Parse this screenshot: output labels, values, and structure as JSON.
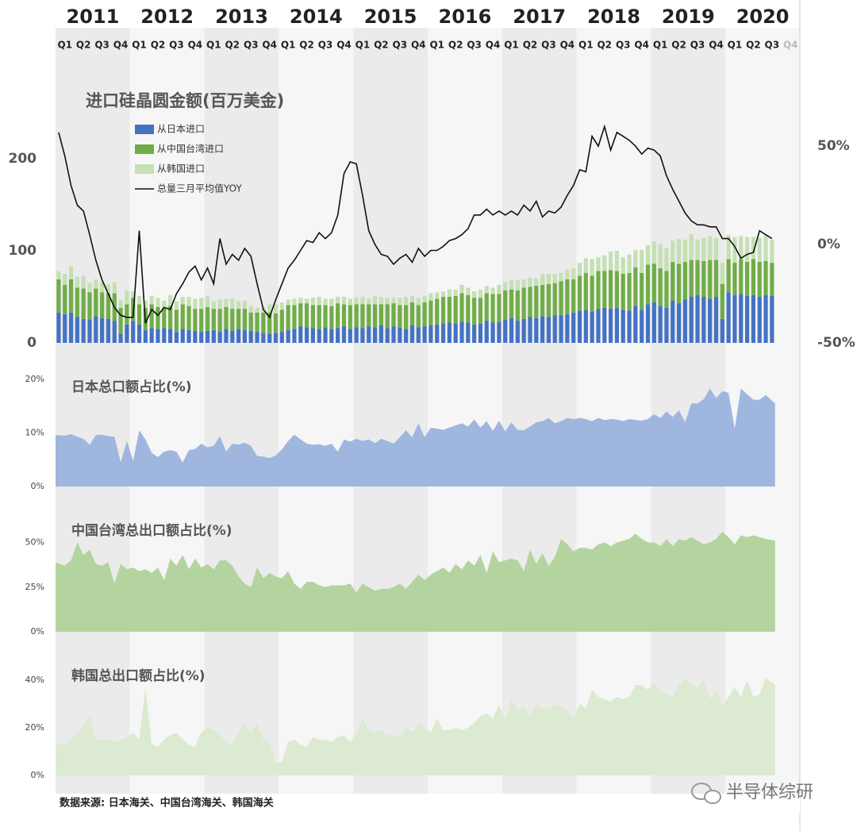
{
  "header": {
    "years": [
      "2011",
      "2012",
      "2013",
      "2014",
      "2015",
      "2016",
      "2017",
      "2018",
      "2019",
      "2020"
    ],
    "quarters": [
      "Q1",
      "Q2",
      "Q3",
      "Q4",
      "Q1",
      "Q2",
      "Q3",
      "Q4",
      "Q1",
      "Q2",
      "Q3",
      "Q4",
      "Q1",
      "Q2",
      "Q3",
      "Q4",
      "Q1",
      "Q2",
      "Q3",
      "Q4",
      "Q1",
      "Q2",
      "Q3",
      "Q4",
      "Q1",
      "Q2",
      "Q3",
      "Q4",
      "Q1",
      "Q2",
      "Q3",
      "Q4",
      "Q1",
      "Q2",
      "Q3",
      "Q4",
      "Q1",
      "Q2",
      "Q3",
      "Q4"
    ]
  },
  "chart_data": [
    {
      "type": "bar",
      "title": "进口硅晶圆金额(百万美金)",
      "stacked": true,
      "ylim": [
        0,
        250
      ],
      "yticks": [
        0,
        100,
        200
      ],
      "y2lim": [
        -50,
        67
      ],
      "y2ticks": [
        {
          "value": 50,
          "label": "50%"
        },
        {
          "value": 0,
          "label": "0%"
        },
        {
          "value": -50,
          "label": "-50%"
        }
      ],
      "series": [
        {
          "name": "从日本进口",
          "color": "#4472c4",
          "values": [
            33,
            31,
            33,
            28,
            26,
            25,
            29,
            27,
            26,
            24,
            10,
            20,
            24,
            20,
            14,
            16,
            15,
            16,
            15,
            12,
            15,
            14,
            13,
            12,
            13,
            14,
            12,
            15,
            13,
            15,
            14,
            13,
            12,
            11,
            10,
            11,
            12,
            14,
            15,
            18,
            17,
            16,
            15,
            17,
            15,
            16,
            18,
            15,
            17,
            16,
            18,
            17,
            19,
            16,
            18,
            17,
            15,
            19,
            17,
            18,
            19,
            20,
            21,
            22,
            21,
            23,
            22,
            20,
            21,
            24,
            22,
            23,
            25,
            27,
            24,
            26,
            28,
            27,
            29,
            28,
            30,
            30,
            31,
            33,
            35,
            36,
            34,
            37,
            38,
            37,
            38,
            36,
            35,
            40,
            36,
            42,
            44,
            40,
            38,
            46,
            43,
            47,
            50,
            52,
            50,
            48,
            50,
            26,
            55,
            52,
            53,
            51,
            52,
            50,
            52,
            51
          ]
        },
        {
          "name": "从中国台湾进口",
          "color": "#70ad47",
          "values": [
            36,
            32,
            36,
            32,
            33,
            30,
            30,
            28,
            28,
            30,
            28,
            22,
            25,
            22,
            24,
            26,
            24,
            22,
            25,
            24,
            27,
            26,
            24,
            25,
            26,
            23,
            25,
            24,
            24,
            22,
            23,
            20,
            21,
            22,
            23,
            21,
            24,
            27,
            26,
            25,
            26,
            25,
            26,
            24,
            25,
            27,
            24,
            26,
            25,
            26,
            24,
            25,
            23,
            26,
            25,
            24,
            26,
            25,
            24,
            26,
            27,
            28,
            29,
            28,
            30,
            31,
            30,
            29,
            28,
            30,
            31,
            30,
            32,
            31,
            33,
            34,
            33,
            35,
            34,
            36,
            35,
            37,
            38,
            36,
            38,
            40,
            39,
            41,
            40,
            42,
            40,
            39,
            41,
            42,
            40,
            43,
            42,
            41,
            40,
            42,
            43,
            41,
            40,
            38,
            39,
            42,
            40,
            38,
            36,
            35,
            38,
            37,
            39,
            38,
            37,
            36
          ]
        },
        {
          "name": "从韩国进口",
          "color": "#c5e0b4",
          "values": [
            9,
            12,
            14,
            12,
            14,
            10,
            10,
            11,
            10,
            12,
            8,
            15,
            7,
            9,
            8,
            9,
            10,
            8,
            12,
            9,
            8,
            10,
            11,
            12,
            12,
            8,
            10,
            9,
            11,
            8,
            9,
            7,
            5,
            6,
            9,
            10,
            8,
            6,
            7,
            6,
            5,
            8,
            9,
            7,
            8,
            7,
            8,
            7,
            7,
            8,
            6,
            9,
            8,
            7,
            6,
            8,
            9,
            7,
            8,
            7,
            8,
            7,
            6,
            8,
            7,
            9,
            8,
            7,
            9,
            8,
            7,
            10,
            9,
            10,
            11,
            9,
            10,
            8,
            12,
            11,
            10,
            9,
            10,
            12,
            14,
            16,
            18,
            15,
            17,
            20,
            22,
            18,
            20,
            19,
            25,
            21,
            24,
            26,
            25,
            23,
            27,
            24,
            28,
            22,
            25,
            26,
            24,
            23,
            26,
            28,
            25,
            27,
            24,
            26,
            28,
            25
          ]
        },
        {
          "name": "总量三月平均值YOY",
          "type": "line",
          "axis": "y2",
          "color": "#111111",
          "values": [
            57,
            45,
            30,
            20,
            17,
            5,
            -8,
            -18,
            -25,
            -32,
            -36,
            -37,
            -37,
            7,
            -40,
            -33,
            -36,
            -32,
            -33,
            -25,
            -20,
            -14,
            -11,
            -18,
            -12,
            -20,
            3,
            -10,
            -5,
            -8,
            -2,
            -6,
            -20,
            -33,
            -37,
            -28,
            -20,
            -12,
            -8,
            -3,
            2,
            1,
            6,
            3,
            6,
            15,
            36,
            42,
            41,
            25,
            7,
            0,
            -5,
            -6,
            -10,
            -7,
            -5,
            -9,
            -2,
            -6,
            -3,
            -3,
            -1,
            2,
            3,
            5,
            8,
            15,
            15,
            18,
            15,
            17,
            15,
            17,
            15,
            20,
            17,
            22,
            14,
            17,
            16,
            19,
            25,
            30,
            38,
            37,
            55,
            50,
            60,
            48,
            57,
            55,
            53,
            50,
            46,
            49,
            48,
            45,
            35,
            28,
            22,
            16,
            12,
            10,
            10,
            9,
            9,
            3,
            3,
            -1,
            -7,
            -5,
            -4,
            7,
            5,
            3
          ]
        }
      ]
    },
    {
      "type": "area",
      "title": "日本总口额占比(%)",
      "color": "#9fb6df",
      "ylim": [
        0,
        20
      ],
      "yticks": [
        {
          "value": 0,
          "label": "0%"
        },
        {
          "value": 10,
          "label": "10%"
        },
        {
          "value": 20,
          "label": "20%"
        }
      ],
      "values": [
        9.6,
        9.5,
        9.8,
        9.3,
        8.9,
        7.8,
        9.6,
        9.7,
        9.4,
        9.3,
        4.5,
        8.5,
        4.8,
        10.5,
        8.8,
        6.3,
        5.5,
        6.5,
        6.8,
        6.5,
        4.5,
        6.8,
        7.0,
        8.0,
        7.3,
        7.6,
        9.4,
        6.5,
        8.0,
        7.8,
        8.2,
        7.6,
        5.7,
        5.6,
        5.3,
        5.8,
        6.9,
        8.5,
        9.7,
        8.8,
        8.0,
        7.8,
        7.9,
        7.6,
        8.0,
        6.5,
        8.8,
        8.4,
        8.9,
        8.5,
        8.8,
        8.1,
        8.9,
        8.5,
        8.0,
        9.2,
        10.5,
        9.2,
        11.8,
        9.2,
        11.0,
        10.8,
        10.6,
        11.0,
        11.4,
        11.8,
        11.2,
        12.5,
        11.0,
        12.2,
        10.4,
        12.3,
        10.3,
        12.0,
        10.6,
        10.5,
        11.2,
        12.0,
        12.2,
        12.8,
        11.8,
        12.2,
        12.8,
        12.6,
        12.8,
        12.6,
        12.2,
        12.8,
        12.4,
        12.6,
        12.5,
        12.2,
        12.6,
        12.4,
        12.3,
        12.6,
        13.5,
        12.8,
        14.0,
        13.0,
        14.2,
        12.0,
        15.5,
        15.5,
        16.3,
        18.3,
        16.5,
        17.8,
        17.5,
        10.8,
        18.3,
        17.2,
        16.2,
        16.2,
        17.1,
        15.5
      ]
    },
    {
      "type": "area",
      "title": "中国台湾总出口额占比(%)",
      "color": "#b4d49f",
      "ylim": [
        0,
        60
      ],
      "yticks": [
        {
          "value": 0,
          "label": "0%"
        },
        {
          "value": 25,
          "label": "25%"
        },
        {
          "value": 50,
          "label": "50%"
        }
      ],
      "values": [
        39,
        37,
        40,
        50,
        43,
        46,
        38,
        37,
        39,
        27,
        38,
        35,
        36,
        34,
        35,
        33,
        36,
        29,
        41,
        37,
        43,
        35,
        41,
        36,
        38,
        35,
        40,
        40,
        37,
        31,
        27,
        25,
        36,
        30,
        33,
        31,
        30,
        34,
        27,
        24,
        28,
        28,
        26,
        25,
        26,
        26,
        26,
        27,
        22,
        27,
        25,
        23,
        24,
        24,
        25,
        27,
        24,
        28,
        32,
        29,
        32,
        34,
        36,
        33,
        38,
        35,
        40,
        37,
        43,
        33,
        45,
        39,
        40,
        41,
        40,
        34,
        46,
        38,
        44,
        37,
        42,
        52,
        49,
        45,
        47,
        47,
        46,
        49,
        50,
        48,
        50,
        51,
        52,
        55,
        52,
        50,
        50,
        48,
        52,
        48,
        52,
        51,
        53,
        51,
        49,
        50,
        52,
        56,
        53,
        49,
        54,
        53,
        54,
        53,
        52,
        51
      ]
    },
    {
      "type": "area",
      "title": "韩国总出口额占比(%)",
      "color": "#dbead0",
      "ylim": [
        0,
        45
      ],
      "yticks": [
        {
          "value": 0,
          "label": "0%"
        },
        {
          "value": 20,
          "label": "20%"
        },
        {
          "value": 40,
          "label": "40%"
        }
      ],
      "values": [
        13,
        13,
        15,
        18,
        21,
        25,
        15,
        15,
        15,
        14,
        15,
        16,
        18,
        15,
        37,
        13,
        12,
        15,
        17,
        18,
        15,
        13,
        12,
        18,
        20,
        19,
        17,
        14,
        13,
        18,
        22,
        18,
        22,
        15,
        14,
        5,
        6,
        14,
        15,
        13,
        12,
        16,
        15,
        15,
        14,
        16,
        17,
        14,
        17,
        24,
        19,
        18,
        19,
        17,
        17,
        16,
        20,
        18,
        22,
        20,
        18,
        24,
        19,
        19,
        20,
        19,
        20,
        22,
        25,
        26,
        24,
        30,
        23,
        32,
        27,
        29,
        25,
        30,
        28,
        28,
        30,
        29,
        27,
        24,
        30,
        28,
        36,
        33,
        32,
        31,
        33,
        32,
        33,
        38,
        38,
        36,
        39,
        35,
        34,
        33,
        38,
        41,
        38,
        37,
        40,
        32,
        36,
        29,
        33,
        37,
        33,
        40,
        33,
        34,
        41,
        38
      ]
    }
  ],
  "source": "数据来源: 日本海关、中国台湾海关、韩国海关",
  "watermark": "半导体综研"
}
